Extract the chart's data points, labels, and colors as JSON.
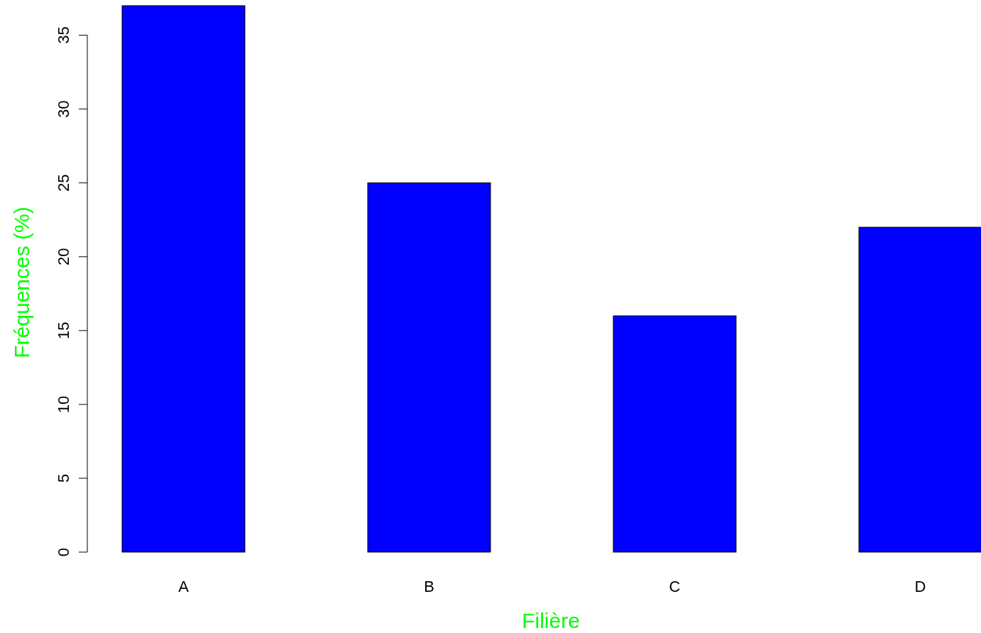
{
  "chart_data": {
    "type": "bar",
    "xlabel": "Filière",
    "ylabel": "Fréquences (%)",
    "categories": [
      "A",
      "B",
      "C",
      "D"
    ],
    "values": [
      37,
      25,
      16,
      22
    ],
    "color": "#0000ff",
    "ylim": [
      0,
      37
    ],
    "yticks": [
      0,
      5,
      10,
      15,
      20,
      25,
      30,
      35
    ],
    "grid": false
  }
}
